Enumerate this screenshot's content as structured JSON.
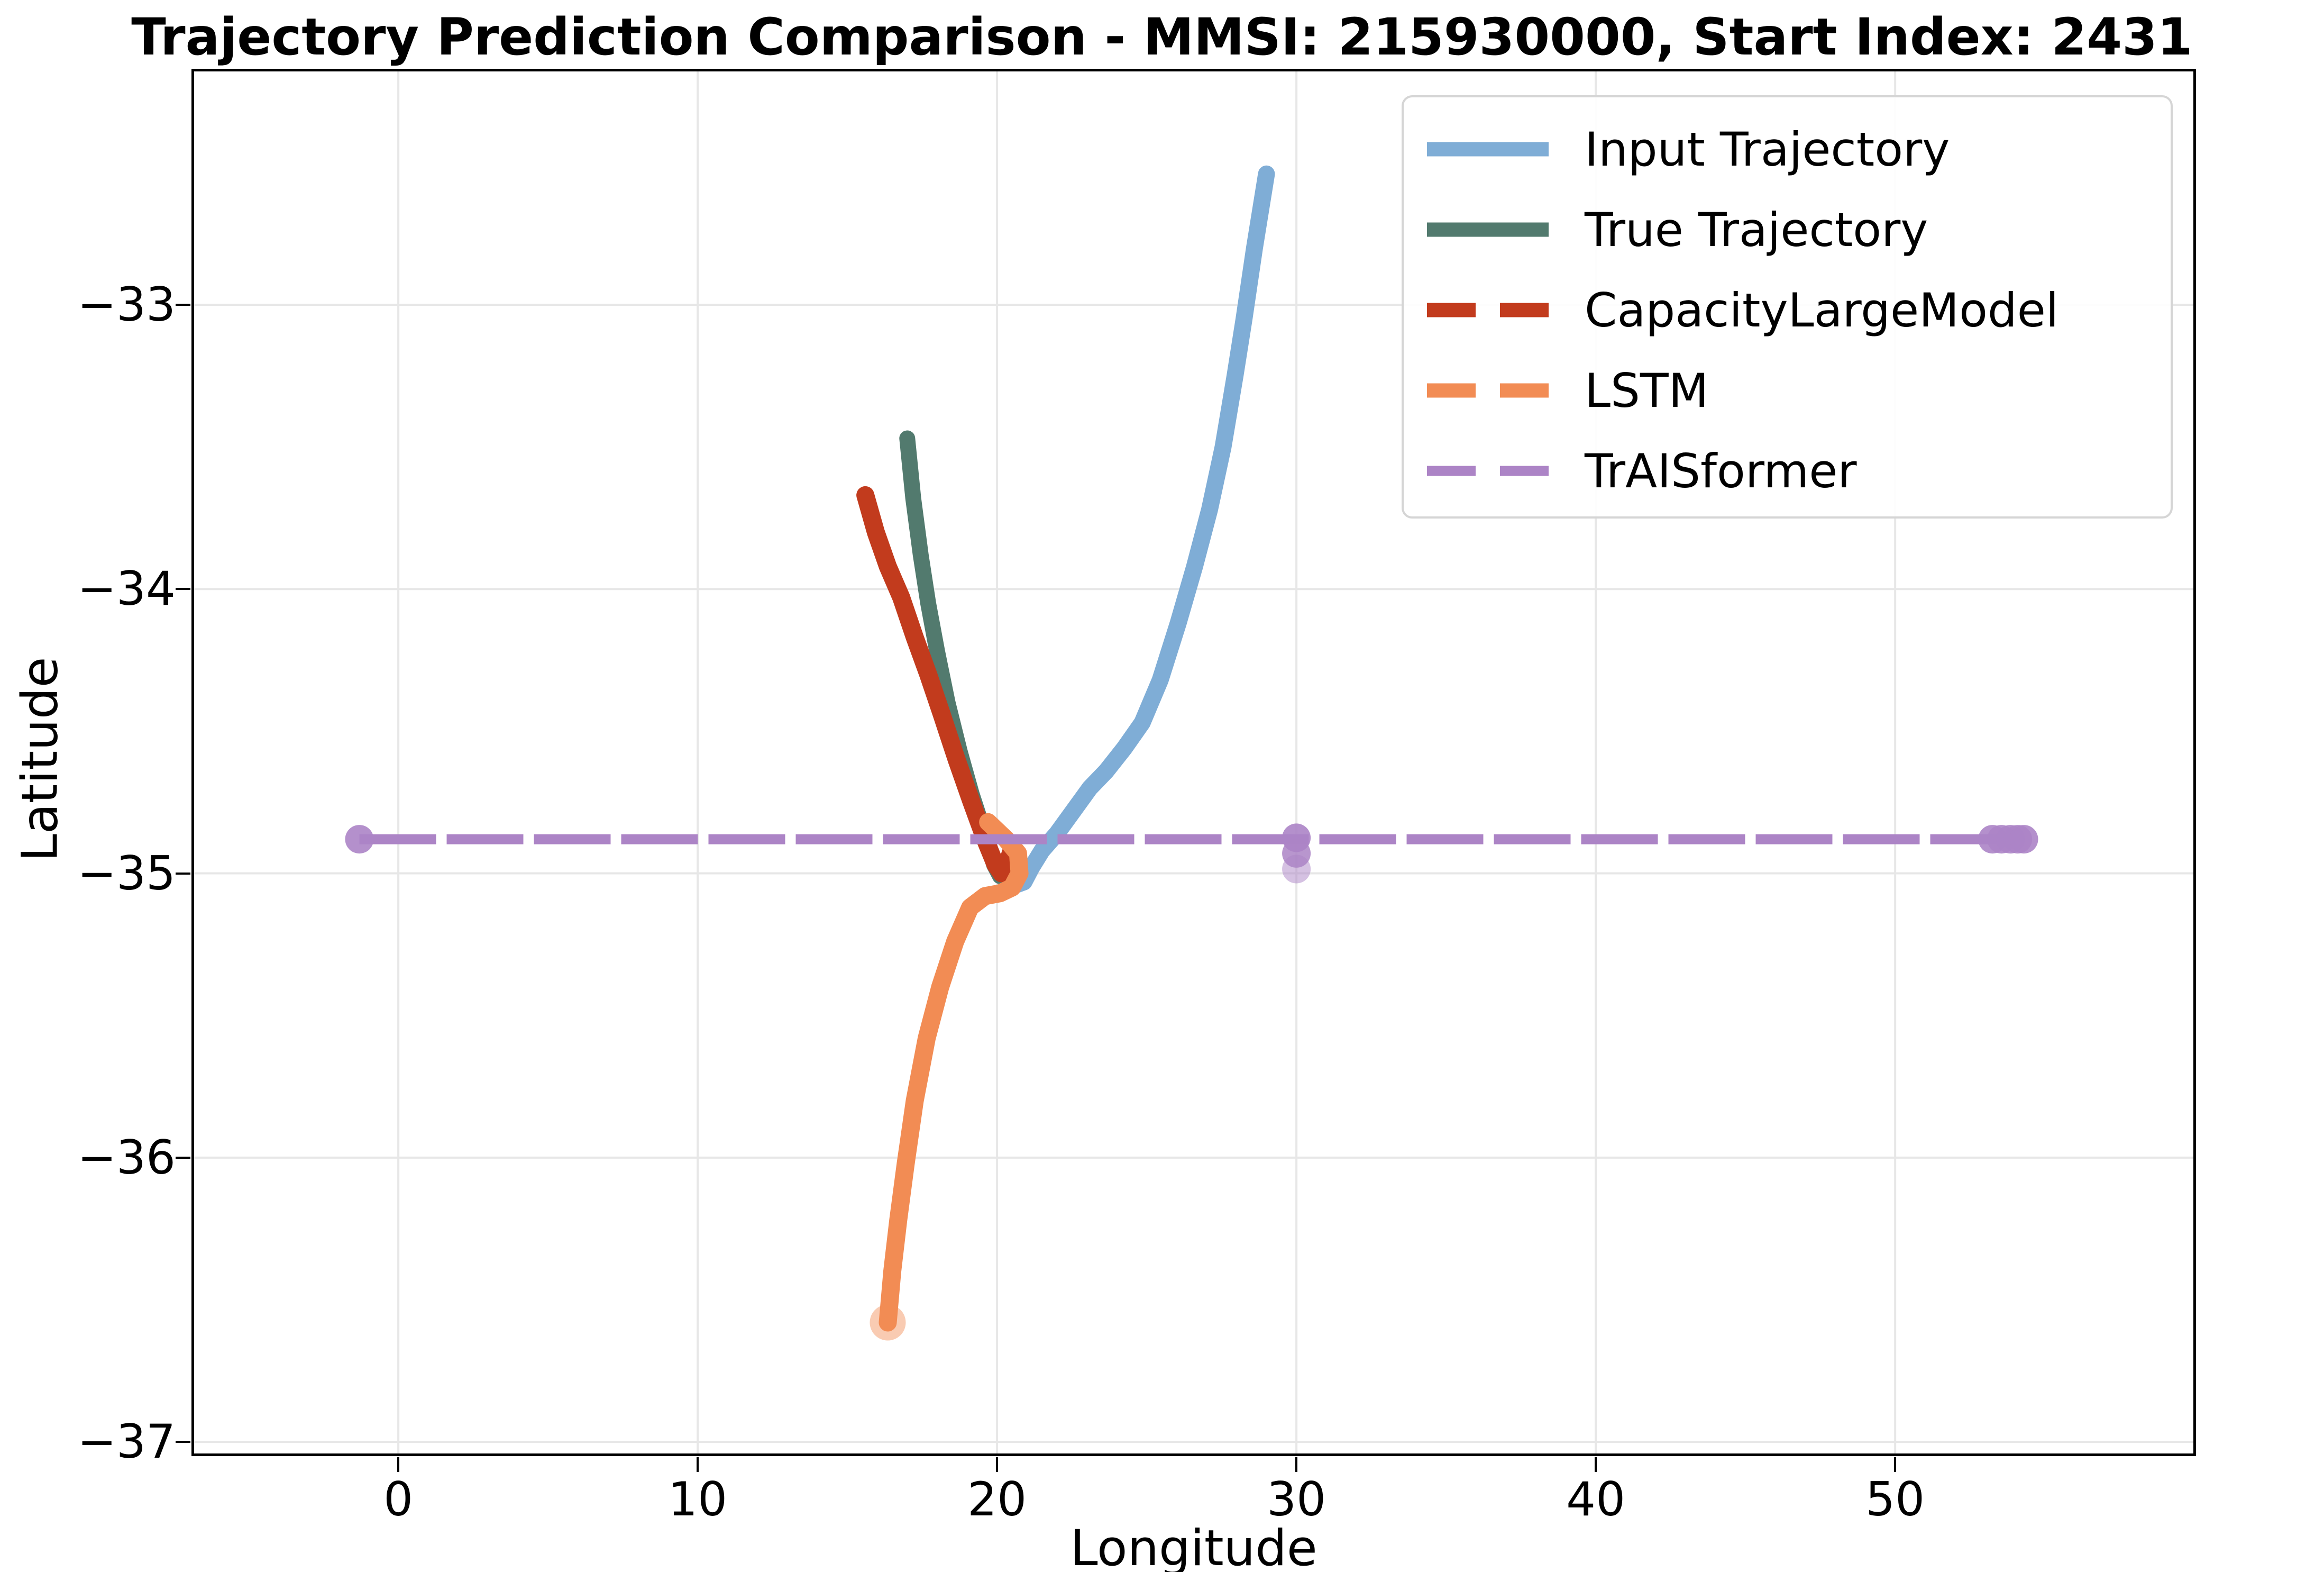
{
  "title": "Trajectory Prediction Comparison - MMSI: 215930000, Start Index: 2431",
  "chart_data": {
    "type": "line",
    "title": "Trajectory Prediction Comparison - MMSI: 215930000, Start Index: 2431",
    "axes": {
      "xlabel": "Longitude",
      "ylabel": "Latitude",
      "xlim": [
        -6.91,
        60.05
      ],
      "ylim": [
        -37.05,
        -32.17
      ],
      "grid": true,
      "x_ticks": [
        {
          "v": 0,
          "label": "0"
        },
        {
          "v": 10,
          "label": "10"
        },
        {
          "v": 20,
          "label": "20"
        },
        {
          "v": 30,
          "label": "30"
        },
        {
          "v": 40,
          "label": "40"
        },
        {
          "v": 50,
          "label": "50"
        }
      ],
      "y_ticks": [
        {
          "v": -33,
          "label": "−33"
        },
        {
          "v": -34,
          "label": "−34"
        },
        {
          "v": -35,
          "label": "−35"
        },
        {
          "v": -36,
          "label": "−36"
        },
        {
          "v": -37,
          "label": "−37"
        }
      ]
    },
    "legend_position": "upper right",
    "series": [
      {
        "name": "Input Trajectory",
        "color": "#7fadd6",
        "style": "solid",
        "width": 32,
        "points": [
          [
            29.0,
            -32.54
          ],
          [
            28.6,
            -32.8
          ],
          [
            28.25,
            -33.05
          ],
          [
            27.95,
            -33.25
          ],
          [
            27.55,
            -33.5
          ],
          [
            27.1,
            -33.72
          ],
          [
            26.6,
            -33.92
          ],
          [
            26.05,
            -34.12
          ],
          [
            25.45,
            -34.32
          ],
          [
            24.85,
            -34.47
          ],
          [
            24.25,
            -34.56
          ],
          [
            23.65,
            -34.64
          ],
          [
            23.1,
            -34.7
          ],
          [
            22.55,
            -34.78
          ],
          [
            22.0,
            -34.86
          ],
          [
            21.5,
            -34.92
          ],
          [
            21.15,
            -34.98
          ],
          [
            20.9,
            -35.03
          ],
          [
            20.65,
            -35.04
          ],
          [
            20.5,
            -34.98
          ]
        ]
      },
      {
        "name": "True Trajectory",
        "color": "#527a6e",
        "style": "solid",
        "width": 30,
        "points": [
          [
            17.0,
            -33.47
          ],
          [
            17.2,
            -33.68
          ],
          [
            17.45,
            -33.88
          ],
          [
            17.7,
            -34.05
          ],
          [
            18.0,
            -34.22
          ],
          [
            18.35,
            -34.4
          ],
          [
            18.75,
            -34.57
          ],
          [
            19.15,
            -34.72
          ],
          [
            19.55,
            -34.85
          ],
          [
            19.9,
            -34.97
          ],
          [
            20.1,
            -35.01
          ],
          [
            20.35,
            -35.0
          ],
          [
            20.5,
            -34.96
          ]
        ]
      },
      {
        "name": "CapacityLargeModel",
        "color": "#c23b1d",
        "style": "dashed",
        "width": 34,
        "points": [
          [
            15.6,
            -33.67
          ],
          [
            15.95,
            -33.8
          ],
          [
            16.35,
            -33.92
          ],
          [
            16.8,
            -34.03
          ],
          [
            17.25,
            -34.17
          ],
          [
            17.7,
            -34.3
          ],
          [
            18.15,
            -34.44
          ],
          [
            18.65,
            -34.6
          ],
          [
            19.15,
            -34.75
          ],
          [
            19.6,
            -34.88
          ],
          [
            19.95,
            -34.97
          ],
          [
            20.15,
            -35.0
          ],
          [
            20.35,
            -34.97
          ],
          [
            20.45,
            -34.93
          ]
        ]
      },
      {
        "name": "LSTM",
        "color": "#f28c54",
        "style": "dashed",
        "width": 34,
        "end_marker": true,
        "points": [
          [
            19.7,
            -34.82
          ],
          [
            20.3,
            -34.88
          ],
          [
            20.7,
            -34.93
          ],
          [
            20.75,
            -35.0
          ],
          [
            20.5,
            -35.05
          ],
          [
            20.1,
            -35.07
          ],
          [
            19.6,
            -35.08
          ],
          [
            19.1,
            -35.12
          ],
          [
            18.6,
            -35.24
          ],
          [
            18.1,
            -35.4
          ],
          [
            17.65,
            -35.58
          ],
          [
            17.25,
            -35.8
          ],
          [
            16.95,
            -36.02
          ],
          [
            16.7,
            -36.22
          ],
          [
            16.5,
            -36.4
          ],
          [
            16.35,
            -36.58
          ]
        ]
      },
      {
        "name": "TrAISformer",
        "color": "#ac84c6",
        "style": "dashed",
        "width": 19,
        "dash": [
          145,
          20
        ],
        "points": [
          [
            -1.3,
            -34.88
          ],
          [
            54.3,
            -34.88
          ]
        ],
        "dots": [
          [
            -1.3,
            -34.88,
            0.9
          ],
          [
            30,
            -34.875,
            0.9
          ],
          [
            30,
            -34.93,
            0.85
          ],
          [
            30,
            -34.985,
            0.5
          ],
          [
            53.25,
            -34.88,
            0.9
          ],
          [
            53.55,
            -34.88,
            0.9
          ],
          [
            53.85,
            -34.88,
            0.9
          ],
          [
            54.1,
            -34.88,
            0.9
          ],
          [
            54.3,
            -34.88,
            0.9
          ]
        ]
      }
    ],
    "style": {
      "grid_color": "#e7e7e7",
      "spine_color": "#000000",
      "background": "#ffffff"
    }
  }
}
